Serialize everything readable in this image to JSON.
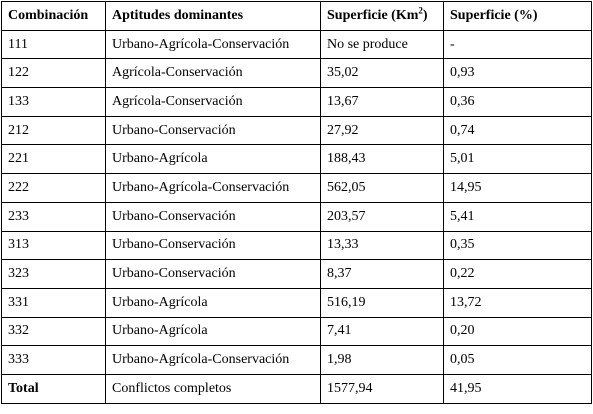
{
  "table": {
    "headers": {
      "combinacion": "Combinación",
      "aptitudes": "Aptitudes dominantes",
      "superficie_km_prefix": "Superficie (Km",
      "superficie_km_sup": "2",
      "superficie_km_suffix": ")",
      "superficie_pct": "Superficie (%)"
    },
    "rows": [
      {
        "combinacion": "111",
        "aptitudes": "Urbano-Agrícola-Conservación",
        "km2": "No se produce",
        "pct": "-"
      },
      {
        "combinacion": "122",
        "aptitudes": "Agrícola-Conservación",
        "km2": "35,02",
        "pct": "0,93"
      },
      {
        "combinacion": "133",
        "aptitudes": "Agrícola-Conservación",
        "km2": "13,67",
        "pct": "0,36"
      },
      {
        "combinacion": "212",
        "aptitudes": "Urbano-Conservación",
        "km2": "27,92",
        "pct": "0,74"
      },
      {
        "combinacion": "221",
        "aptitudes": "Urbano-Agrícola",
        "km2": "188,43",
        "pct": "5,01"
      },
      {
        "combinacion": "222",
        "aptitudes": "Urbano-Agrícola-Conservación",
        "km2": "562,05",
        "pct": "14,95"
      },
      {
        "combinacion": "233",
        "aptitudes": "Urbano-Conservación",
        "km2": "203,57",
        "pct": "5,41"
      },
      {
        "combinacion": "313",
        "aptitudes": "Urbano-Conservación",
        "km2": "13,33",
        "pct": "0,35"
      },
      {
        "combinacion": "323",
        "aptitudes": "Urbano-Conservación",
        "km2": "8,37",
        "pct": "0,22"
      },
      {
        "combinacion": "331",
        "aptitudes": "Urbano-Agrícola",
        "km2": "516,19",
        "pct": "13,72"
      },
      {
        "combinacion": "332",
        "aptitudes": "Urbano-Agrícola",
        "km2": "7,41",
        "pct": "0,20"
      },
      {
        "combinacion": "333",
        "aptitudes": "Urbano-Agrícola-Conservación",
        "km2": "1,98",
        "pct": "0,05"
      }
    ],
    "total": {
      "combinacion": "Total",
      "aptitudes": "Conflictos completos",
      "km2": "1577,94",
      "pct": "41,95"
    }
  }
}
